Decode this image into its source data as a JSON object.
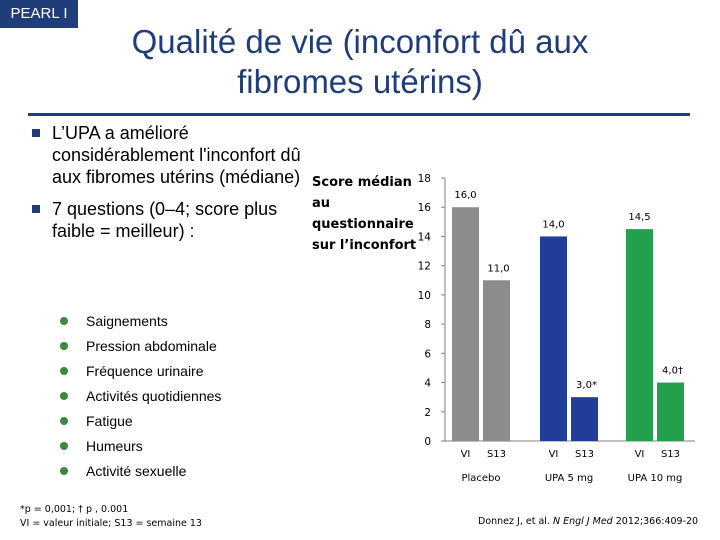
{
  "header": {
    "tag": "PEARL I",
    "title": "Qualité de vie (inconfort dû aux fibromes utérins)"
  },
  "bullets": [
    "L’UPA a amélioré considérablement l'inconfort dû aux fibromes utérins (médiane)",
    "7 questions (0–4; score plus faible = meilleur) :"
  ],
  "subitems": [
    "Saignements",
    "Pression abdominale",
    "Fréquence urinaire",
    "Activités quotidiennes",
    "Fatigue",
    "Humeurs",
    "Activité sexuelle"
  ],
  "footnote": {
    "line1": "*p = 0,001; † p , 0.001",
    "line2": "VI = valeur initiale; S13 = semaine 13"
  },
  "citation": {
    "authors": "Donnez J, et al.",
    "journal": "N Engl J Med",
    "ref": "2012;366:409-20"
  },
  "colors": {
    "title_blue": "#1f3d7a",
    "placebo": "#8c8c8c",
    "upa5": "#1f3d99",
    "upa10": "#22a04b"
  },
  "chart_data": {
    "type": "bar",
    "ylabel": "Score médian au questionnaire sur l’inconfort",
    "ylim": [
      0,
      18
    ],
    "yticks": [
      0,
      2,
      4,
      6,
      8,
      10,
      12,
      14,
      16,
      18
    ],
    "groups": [
      {
        "name": "Placebo",
        "color_key": "placebo",
        "bars": [
          {
            "x": "VI",
            "value": 16.0,
            "label": "16,0"
          },
          {
            "x": "S13",
            "value": 11.0,
            "label": "11,0"
          }
        ]
      },
      {
        "name": "UPA 5 mg",
        "color_key": "upa5",
        "bars": [
          {
            "x": "VI",
            "value": 14.0,
            "label": "14,0"
          },
          {
            "x": "S13",
            "value": 3.0,
            "label": "3,0*"
          }
        ]
      },
      {
        "name": "UPA 10 mg",
        "color_key": "upa10",
        "bars": [
          {
            "x": "VI",
            "value": 14.5,
            "label": "14,5"
          },
          {
            "x": "S13",
            "value": 4.0,
            "label": "4,0†"
          }
        ]
      }
    ]
  }
}
